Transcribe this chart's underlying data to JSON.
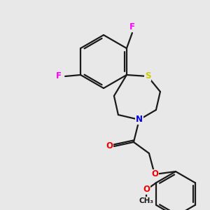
{
  "bg_color": "#e8e8e8",
  "bond_color": "#1a1a1a",
  "bond_width": 1.6,
  "atom_colors": {
    "F": "#ff00ff",
    "S": "#cccc00",
    "N": "#0000ee",
    "O": "#ee0000",
    "C": "#1a1a1a"
  },
  "font_size_atom": 8.5
}
